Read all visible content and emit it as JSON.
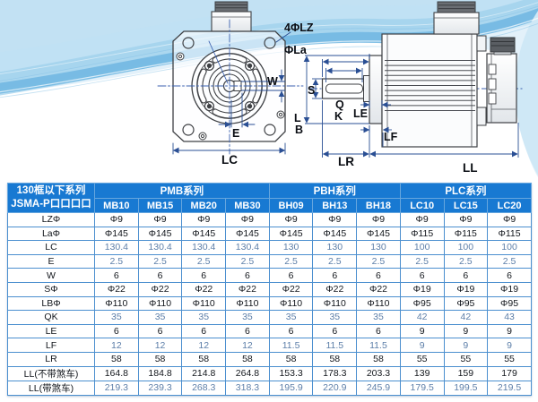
{
  "diagram": {
    "labels": {
      "lz": "4ΦLZ",
      "la": "ΦLa",
      "w": "W",
      "e": "E",
      "lc": "LC",
      "s": "S",
      "q": "Q",
      "k": "K",
      "le": "LE",
      "l": "L",
      "b": "B",
      "lf": "LF",
      "lr": "LR",
      "ll": "LL"
    }
  },
  "table": {
    "corner_header": {
      "line1": "130框以下系列",
      "line2": "JSMA-P口口口口"
    },
    "series": [
      {
        "label": "PMB系列",
        "models": [
          "MB10",
          "MB15",
          "MB20",
          "MB30"
        ]
      },
      {
        "label": "PBH系列",
        "models": [
          "BH09",
          "BH13",
          "BH18"
        ]
      },
      {
        "label": "PLC系列",
        "models": [
          "LC10",
          "LC15",
          "LC20"
        ]
      }
    ],
    "rows": [
      {
        "label": "LZΦ",
        "muted": false,
        "values": [
          "Φ9",
          "Φ9",
          "Φ9",
          "Φ9",
          "Φ9",
          "Φ9",
          "Φ9",
          "Φ9",
          "Φ9",
          "Φ9"
        ]
      },
      {
        "label": "LaΦ",
        "muted": false,
        "values": [
          "Φ145",
          "Φ145",
          "Φ145",
          "Φ145",
          "Φ145",
          "Φ145",
          "Φ145",
          "Φ115",
          "Φ115",
          "Φ115"
        ]
      },
      {
        "label": "LC",
        "muted": true,
        "values": [
          "130.4",
          "130.4",
          "130.4",
          "130.4",
          "130",
          "130",
          "130",
          "100",
          "100",
          "100"
        ]
      },
      {
        "label": "E",
        "muted": true,
        "values": [
          "2.5",
          "2.5",
          "2.5",
          "2.5",
          "2.5",
          "2.5",
          "2.5",
          "2.5",
          "2.5",
          "2.5"
        ]
      },
      {
        "label": "W",
        "muted": false,
        "values": [
          "6",
          "6",
          "6",
          "6",
          "6",
          "6",
          "6",
          "6",
          "6",
          "6"
        ]
      },
      {
        "label": "SΦ",
        "muted": false,
        "values": [
          "Φ22",
          "Φ22",
          "Φ22",
          "Φ22",
          "Φ22",
          "Φ22",
          "Φ22",
          "Φ19",
          "Φ19",
          "Φ19"
        ]
      },
      {
        "label": "LBΦ",
        "muted": false,
        "values": [
          "Φ110",
          "Φ110",
          "Φ110",
          "Φ110",
          "Φ110",
          "Φ110",
          "Φ110",
          "Φ95",
          "Φ95",
          "Φ95"
        ]
      },
      {
        "label": "QK",
        "muted": true,
        "values": [
          "35",
          "35",
          "35",
          "35",
          "35",
          "35",
          "35",
          "42",
          "42",
          "43"
        ]
      },
      {
        "label": "LE",
        "muted": false,
        "values": [
          "6",
          "6",
          "6",
          "6",
          "6",
          "6",
          "6",
          "9",
          "9",
          "9"
        ]
      },
      {
        "label": "LF",
        "muted": true,
        "values": [
          "12",
          "12",
          "12",
          "12",
          "11.5",
          "11.5",
          "11.5",
          "9",
          "9",
          "9"
        ]
      },
      {
        "label": "LR",
        "muted": false,
        "values": [
          "58",
          "58",
          "58",
          "58",
          "58",
          "58",
          "58",
          "55",
          "55",
          "55"
        ]
      },
      {
        "label": "LL(不带煞车)",
        "muted": false,
        "values": [
          "164.8",
          "184.8",
          "214.8",
          "264.8",
          "153.3",
          "178.3",
          "203.3",
          "139",
          "159",
          "179"
        ]
      },
      {
        "label": "LL(带煞车)",
        "muted": true,
        "values": [
          "219.3",
          "239.3",
          "268.3",
          "318.3",
          "195.9",
          "220.9",
          "245.9",
          "179.5",
          "199.5",
          "219.5"
        ]
      }
    ]
  },
  "colors": {
    "header_blue": "#1879d2",
    "table_border_blue": "#4b8fcf",
    "muted_text": "#5d7fa9",
    "dark_text": "#12161c",
    "dimension_navy": "#2a4f94",
    "wave_blue": "#7fc0e4"
  }
}
